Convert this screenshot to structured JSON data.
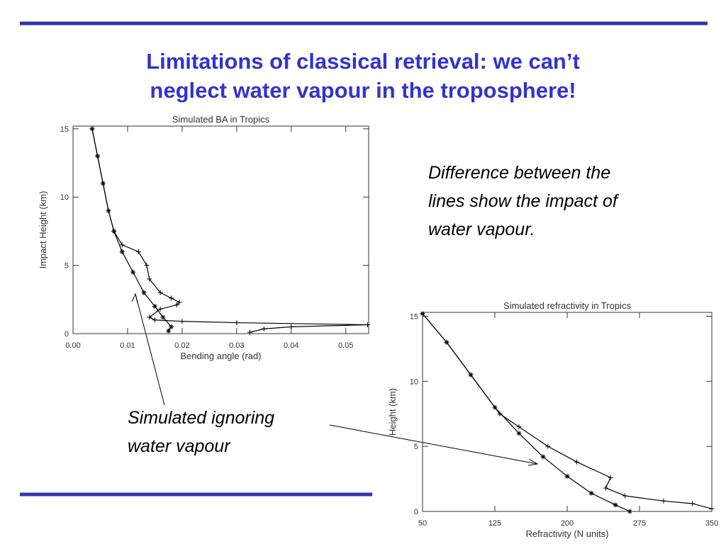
{
  "title": [
    "Limitations of classical retrieval: we can’t",
    "neglect water vapour in the troposphere!"
  ],
  "note": [
    "Difference between the",
    "lines show the impact of",
    "water vapour."
  ],
  "callout": [
    "Simulated ignoring",
    "water vapour"
  ],
  "chart_data": [
    {
      "type": "line",
      "title": "Simulated BA in Tropics",
      "x_label": "Bending angle (rad)",
      "y_label": "Impact Height (km)",
      "xlim": [
        0,
        0.0542
      ],
      "ylim": [
        0,
        15.2
      ],
      "xticks": [
        {
          "value": 0,
          "label": "0.00"
        },
        {
          "value": 0.01,
          "label": "0.01"
        },
        {
          "value": 0.02,
          "label": "0.02"
        },
        {
          "value": 0.03,
          "label": "0.03"
        },
        {
          "value": 0.04,
          "label": "0.04"
        },
        {
          "value": 0.05,
          "label": "0.05"
        }
      ],
      "yticks": [
        0,
        5,
        10,
        15
      ],
      "series": [
        {
          "marker": "asterisk",
          "color": "#000000",
          "x": [
            0.0035,
            0.0045,
            0.0055,
            0.0065,
            0.0075,
            0.009,
            0.011,
            0.013,
            0.015,
            0.0165,
            0.018,
            0.0175
          ],
          "values": [
            15,
            13,
            11,
            9,
            7.5,
            6,
            4.5,
            3,
            2,
            1.2,
            0.5,
            0.2
          ]
        },
        {
          "marker": "plus",
          "color": "#000000",
          "x": [
            0.0035,
            0.0045,
            0.0055,
            0.0065,
            0.0075,
            0.009,
            0.012,
            0.0135,
            0.014,
            0.016,
            0.018,
            0.0195,
            0.019,
            0.016,
            0.014,
            0.015,
            0.02,
            0.03,
            0.054,
            0.04,
            0.035,
            0.0324
          ],
          "values": [
            15,
            13,
            11,
            9,
            7.5,
            6.5,
            6,
            5,
            4,
            3,
            2.6,
            2.3,
            2.1,
            1.8,
            1.2,
            1.0,
            0.9,
            0.8,
            0.65,
            0.5,
            0.35,
            0.1
          ]
        }
      ]
    },
    {
      "type": "line",
      "title": "Simulated refractivity in Tropics",
      "x_label": "Refractivity (N units)",
      "y_label": "Height (km)",
      "xlim": [
        50,
        350
      ],
      "ylim": [
        0,
        15.3
      ],
      "xticks": [
        50,
        125,
        200,
        275,
        350
      ],
      "yticks": [
        0,
        5,
        10,
        15
      ],
      "series": [
        {
          "marker": "asterisk",
          "color": "#000000",
          "x": [
            50,
            75,
            100,
            125,
            150,
            175,
            200,
            225,
            250,
            265
          ],
          "values": [
            15.2,
            13,
            10.5,
            8,
            6,
            4.2,
            2.7,
            1.4,
            0.5,
            0
          ]
        },
        {
          "marker": "plus",
          "color": "#000000",
          "x": [
            50,
            75,
            100,
            130,
            150,
            180,
            210,
            245,
            240,
            260,
            300,
            330,
            350
          ],
          "values": [
            15.2,
            13,
            10.5,
            7.5,
            6.5,
            5,
            3.8,
            2.6,
            1.8,
            1.2,
            0.8,
            0.6,
            0.2
          ]
        }
      ]
    }
  ]
}
